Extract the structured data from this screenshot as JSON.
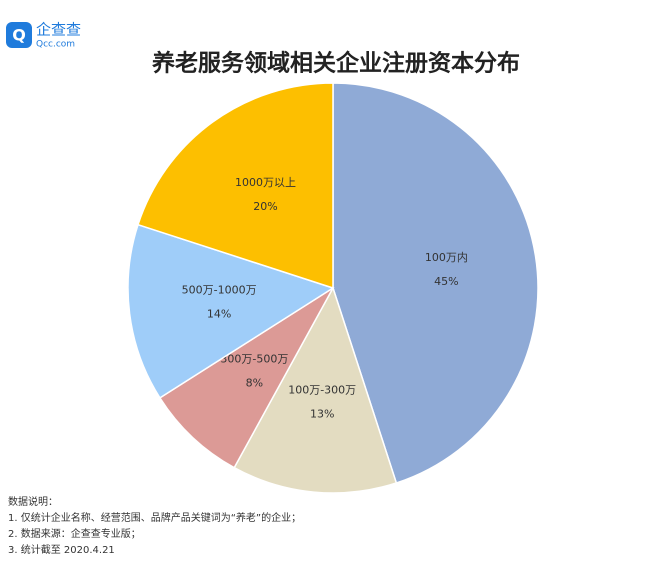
{
  "logo": {
    "name": "企查查",
    "site": "Qcc.com"
  },
  "chart_data": {
    "type": "pie",
    "title": "养老服务领域相关企业注册资本分布",
    "categories": [
      "100万内",
      "100万-300万",
      "300万-500万",
      "500万-1000万",
      "1000万以上"
    ],
    "values": [
      45,
      13,
      8,
      14,
      20
    ],
    "value_labels": [
      "45%",
      "13%",
      "8%",
      "14%",
      "20%"
    ],
    "colors": [
      "#8faad6",
      "#e3dcc1",
      "#dc9a96",
      "#9fcdf9",
      "#fdbf00"
    ]
  },
  "notes": [
    "数据说明：",
    "1. 仅统计企业名称、经营范围、品牌产品关键词为“养老”的企业；",
    "2. 数据来源：企查查专业版；",
    "3. 统计截至 2020.4.21"
  ]
}
